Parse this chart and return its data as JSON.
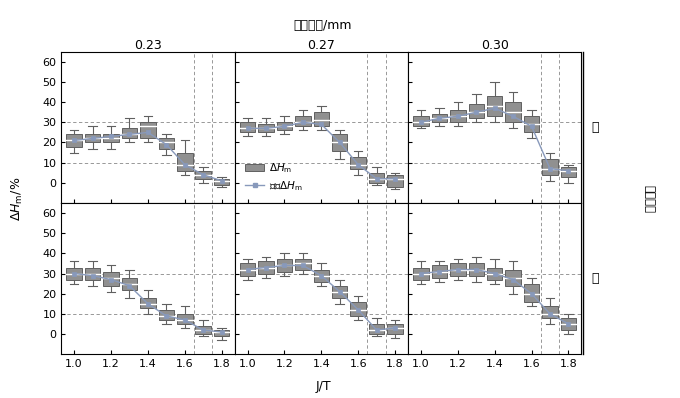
{
  "title_top": "试样厅度/mm",
  "ylabel": "ΔH_m/%",
  "xlabel": "J/T",
  "right_label_top": "否",
  "right_label_mid": "剂酶与否",
  "right_label_bot": "是",
  "thickness_labels": [
    "0.23",
    "0.27",
    "0.30"
  ],
  "legend_label1": "ΔH_m",
  "legend_label2": "平滑ΔH_m",
  "ylim": [
    -10,
    65
  ],
  "yticks": [
    0,
    10,
    20,
    30,
    40,
    50,
    60
  ],
  "hlines": [
    10,
    30
  ],
  "box_facecolor": "#909090",
  "box_edgecolor": "#606060",
  "line_color": "#8899bb",
  "bg_color": "#ffffff",
  "J_values": [
    1.0,
    1.1,
    1.2,
    1.3,
    1.4,
    1.5,
    1.6,
    1.7,
    1.8
  ],
  "boxes_top_023": {
    "medians": [
      21,
      22,
      22,
      24,
      28,
      20,
      9,
      4,
      1
    ],
    "q1": [
      18,
      20,
      20,
      22,
      22,
      17,
      6,
      2,
      -1
    ],
    "q3": [
      24,
      24,
      24,
      27,
      30,
      22,
      15,
      6,
      2
    ],
    "whislo": [
      15,
      17,
      17,
      20,
      20,
      14,
      4,
      0,
      -2
    ],
    "whishi": [
      26,
      28,
      28,
      32,
      33,
      24,
      21,
      8,
      3
    ]
  },
  "boxes_top_027": {
    "medians": [
      27,
      27,
      28,
      30,
      31,
      20,
      9,
      2,
      2
    ],
    "q1": [
      25,
      25,
      26,
      28,
      28,
      16,
      7,
      0,
      -2
    ],
    "q3": [
      30,
      29,
      30,
      33,
      35,
      24,
      13,
      5,
      4
    ],
    "whislo": [
      23,
      23,
      24,
      26,
      26,
      12,
      4,
      -1,
      -3
    ],
    "whishi": [
      32,
      32,
      33,
      36,
      38,
      26,
      16,
      8,
      5
    ]
  },
  "boxes_top_030": {
    "medians": [
      30,
      32,
      33,
      35,
      38,
      35,
      29,
      7,
      6
    ],
    "q1": [
      28,
      30,
      30,
      32,
      33,
      30,
      25,
      4,
      3
    ],
    "q3": [
      33,
      34,
      36,
      39,
      43,
      40,
      33,
      12,
      8
    ],
    "whislo": [
      27,
      28,
      28,
      30,
      30,
      27,
      22,
      1,
      0
    ],
    "whishi": [
      36,
      37,
      40,
      44,
      50,
      45,
      36,
      15,
      9
    ]
  },
  "boxes_bot_023": {
    "medians": [
      30,
      30,
      28,
      25,
      15,
      9,
      7,
      2,
      1
    ],
    "q1": [
      27,
      27,
      24,
      22,
      13,
      7,
      5,
      0,
      -1
    ],
    "q3": [
      33,
      33,
      31,
      28,
      18,
      12,
      10,
      4,
      2
    ],
    "whislo": [
      25,
      24,
      21,
      18,
      10,
      5,
      3,
      -1,
      -3
    ],
    "whishi": [
      36,
      36,
      34,
      32,
      22,
      15,
      14,
      7,
      3
    ]
  },
  "boxes_bot_027": {
    "medians": [
      32,
      33,
      34,
      35,
      29,
      21,
      12,
      2,
      3
    ],
    "q1": [
      29,
      30,
      31,
      32,
      26,
      18,
      9,
      0,
      0
    ],
    "q3": [
      35,
      36,
      37,
      37,
      32,
      24,
      16,
      5,
      5
    ],
    "whislo": [
      27,
      28,
      29,
      30,
      24,
      15,
      7,
      -1,
      -2
    ],
    "whishi": [
      37,
      38,
      40,
      40,
      35,
      27,
      19,
      8,
      7
    ]
  },
  "boxes_bot_030": {
    "medians": [
      30,
      31,
      32,
      32,
      30,
      28,
      20,
      10,
      5
    ],
    "q1": [
      27,
      28,
      29,
      29,
      27,
      24,
      16,
      8,
      2
    ],
    "q3": [
      33,
      34,
      35,
      35,
      33,
      32,
      25,
      14,
      8
    ],
    "whislo": [
      25,
      26,
      27,
      26,
      25,
      20,
      14,
      5,
      0
    ],
    "whishi": [
      36,
      36,
      37,
      38,
      37,
      36,
      28,
      18,
      10
    ]
  },
  "smooth_top_023": [
    21,
    22,
    23,
    24,
    25,
    19,
    9,
    4,
    1
  ],
  "smooth_top_027": [
    27,
    27,
    28,
    30,
    29,
    20,
    9,
    2,
    2
  ],
  "smooth_top_030": [
    30,
    32,
    33,
    35,
    37,
    33,
    28,
    7,
    6
  ],
  "smooth_bot_023": [
    30,
    29,
    27,
    24,
    15,
    9,
    7,
    2,
    1
  ],
  "smooth_bot_027": [
    32,
    33,
    34,
    34,
    29,
    21,
    12,
    2,
    3
  ],
  "smooth_bot_030": [
    30,
    31,
    32,
    32,
    30,
    27,
    20,
    10,
    5
  ],
  "vlines_x": [
    1.65,
    1.75
  ]
}
